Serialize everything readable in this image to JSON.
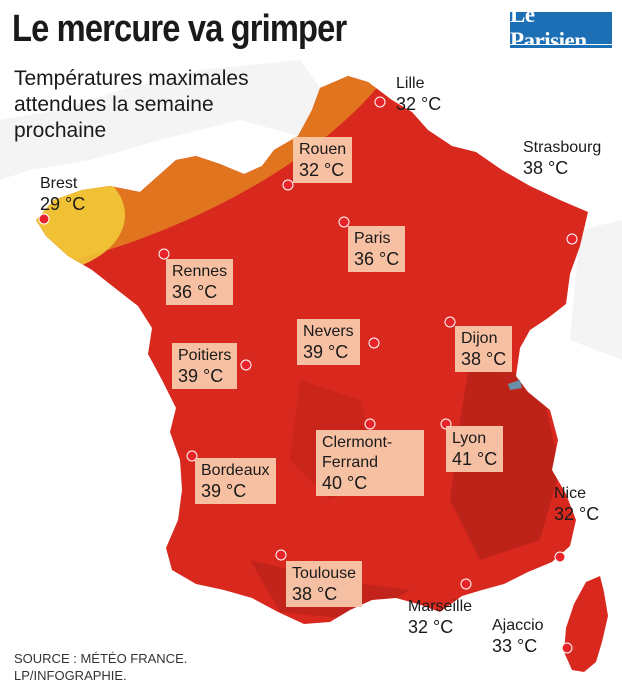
{
  "title": "Le mercure va grimper",
  "subtitle": "Températures maximales attendues la semaine prochaine",
  "logo": "Le Parisien",
  "source_line1": "SOURCE : MÉTÉO FRANCE.",
  "source_line2": "LP/INFOGRAPHIE.",
  "colors": {
    "hot": "#d9281e",
    "warm": "#e0741f",
    "mild": "#f2cf3a",
    "dot": "#e8232a",
    "box": "#facdaf"
  },
  "cities": [
    {
      "id": "lille",
      "name": "Lille",
      "temp": "32 °C"
    },
    {
      "id": "rouen",
      "name": "Rouen",
      "temp": "32 °C"
    },
    {
      "id": "strasbourg",
      "name": "Strasbourg",
      "temp": "38 °C"
    },
    {
      "id": "brest",
      "name": "Brest",
      "temp": "29 °C"
    },
    {
      "id": "paris",
      "name": "Paris",
      "temp": "36 °C"
    },
    {
      "id": "rennes",
      "name": "Rennes",
      "temp": "36 °C"
    },
    {
      "id": "nevers",
      "name": "Nevers",
      "temp": "39 °C"
    },
    {
      "id": "dijon",
      "name": "Dijon",
      "temp": "38 °C"
    },
    {
      "id": "poitiers",
      "name": "Poitiers",
      "temp": "39 °C"
    },
    {
      "id": "clermont",
      "name": "Clermont-Ferrand",
      "temp": "40 °C"
    },
    {
      "id": "lyon",
      "name": "Lyon",
      "temp": "41 °C"
    },
    {
      "id": "bordeaux",
      "name": "Bordeaux",
      "temp": "39 °C"
    },
    {
      "id": "nice",
      "name": "Nice",
      "temp": "32 °C"
    },
    {
      "id": "toulouse",
      "name": "Toulouse",
      "temp": "38 °C"
    },
    {
      "id": "marseille",
      "name": "Marseille",
      "temp": "32 °C"
    },
    {
      "id": "ajaccio",
      "name": "Ajaccio",
      "temp": "33 °C"
    }
  ]
}
